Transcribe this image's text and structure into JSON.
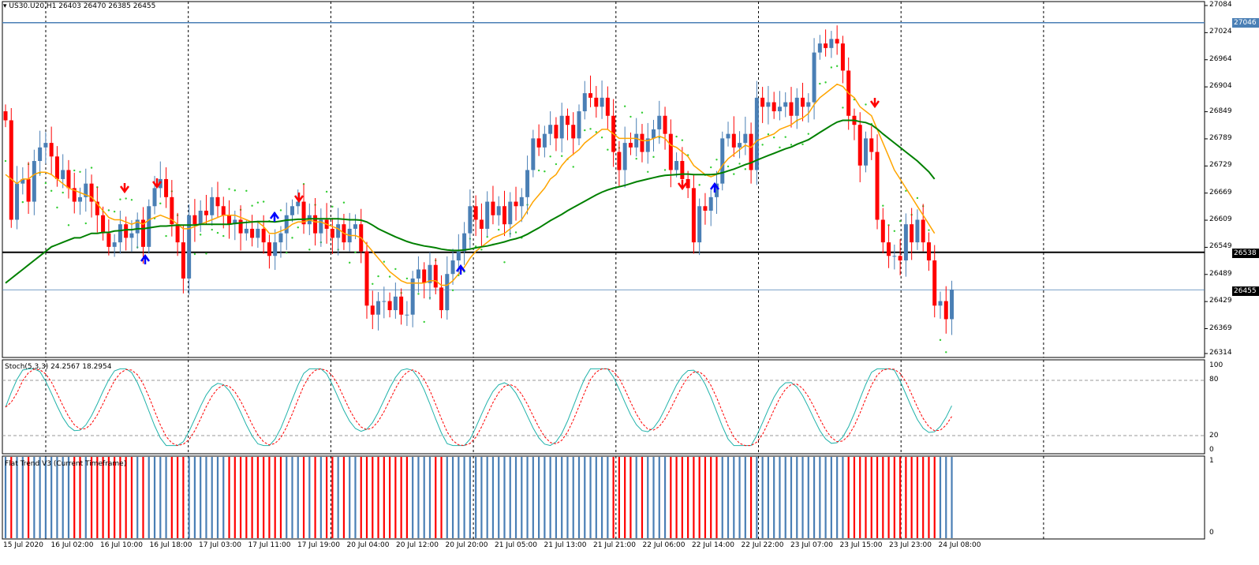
{
  "header": {
    "symbol_line": "US30.U20,H1  26403 26470 26385 26455"
  },
  "price_axis": {
    "ticks": [
      "27084",
      "27024",
      "26964",
      "26904",
      "26849",
      "26789",
      "26729",
      "26669",
      "26609",
      "26549",
      "26489",
      "26429",
      "26369",
      "26314"
    ],
    "tags": {
      "resistance": "27046",
      "support": "26538",
      "current": "26455"
    }
  },
  "stoch": {
    "title": "Stoch(5,3,3) 24.2567 18.2954",
    "levels": [
      "100",
      "80",
      "20",
      "0"
    ]
  },
  "flat_trend": {
    "title": "Flat Trend V3 (Current Timeframe)",
    "levels": [
      "1",
      "0"
    ]
  },
  "time_axis": {
    "labels": [
      "15 Jul 2020",
      "16 Jul 02:00",
      "16 Jul 10:00",
      "16 Jul 18:00",
      "17 Jul 03:00",
      "17 Jul 11:00",
      "17 Jul 19:00",
      "20 Jul 04:00",
      "20 Jul 12:00",
      "20 Jul 20:00",
      "21 Jul 05:00",
      "21 Jul 13:00",
      "21 Jul 21:00",
      "22 Jul 06:00",
      "22 Jul 14:00",
      "22 Jul 22:00",
      "23 Jul 07:00",
      "23 Jul 15:00",
      "23 Jul 23:00",
      "24 Jul 08:00"
    ]
  },
  "colors": {
    "bull": "#4a7fb5",
    "bear": "#ff0000",
    "ma_fast": "#ffa500",
    "ma_slow": "#008000",
    "sar": "#32cd32",
    "stoch_main": "#20b2aa",
    "stoch_signal": "#ff0000",
    "arrow_up": "#0000ff",
    "arrow_down": "#ff0000",
    "resistance": "#4a7fb5",
    "support": "#000000"
  },
  "chart_data": {
    "type": "candlestick",
    "closes": [
      26830,
      26610,
      26690,
      26700,
      26650,
      26740,
      26770,
      26780,
      26750,
      26700,
      26720,
      26680,
      26650,
      26660,
      26690,
      26650,
      26620,
      26580,
      26550,
      26560,
      26600,
      26570,
      26580,
      26610,
      26550,
      26640,
      26680,
      26700,
      26660,
      26600,
      26560,
      26480,
      26620,
      26600,
      26630,
      26620,
      26660,
      26640,
      26620,
      26600,
      26610,
      26580,
      26590,
      26570,
      26590,
      26560,
      26530,
      26560,
      26580,
      26620,
      26640,
      26650,
      26600,
      26620,
      26580,
      26610,
      26590,
      26570,
      26600,
      26560,
      26590,
      26600,
      26540,
      26420,
      26400,
      26430,
      26430,
      26410,
      26440,
      26400,
      26400,
      26480,
      26500,
      26470,
      26510,
      26460,
      26410,
      26490,
      26520,
      26540,
      26580,
      26640,
      26610,
      26590,
      26650,
      26620,
      26640,
      26600,
      26650,
      26640,
      26660,
      26720,
      26790,
      26770,
      26800,
      26820,
      26790,
      26840,
      26820,
      26790,
      26850,
      26890,
      26880,
      26860,
      26880,
      26840,
      26760,
      26720,
      26780,
      26770,
      26800,
      26760,
      26790,
      26810,
      26840,
      26800,
      26720,
      26740,
      26700,
      26680,
      26560,
      26640,
      26630,
      26660,
      26690,
      26790,
      26800,
      26770,
      26780,
      26800,
      26720,
      26880,
      26860,
      26870,
      26850,
      26860,
      26870,
      26840,
      26880,
      26860,
      26870,
      26980,
      27000,
      26990,
      27010,
      27000,
      26940,
      26840,
      26820,
      26730,
      26790,
      26760,
      26610,
      26560,
      26530,
      26530,
      26520,
      26600,
      26560,
      26610,
      26560,
      26520,
      26420,
      26430,
      26390,
      26455
    ],
    "series": [
      {
        "values": [
          26710,
          26700,
          26690,
          26700,
          26700,
          26710,
          26715,
          26715,
          26710,
          26700,
          26690,
          26680,
          26675,
          26670,
          26665,
          26660,
          26645,
          26630,
          26615,
          26610,
          26610,
          26605,
          26600,
          26605,
          26600,
          26610,
          26615,
          26620,
          26615,
          26610,
          26600,
          26590,
          26590,
          26595,
          26600,
          26605,
          26610,
          26615,
          26620,
          26620,
          26620,
          26615,
          26610,
          26605,
          26605,
          26595,
          26580,
          26580,
          26585,
          26590,
          26600,
          26605,
          26605,
          26610,
          26605,
          26605,
          26600,
          26595,
          26590,
          26580,
          26575,
          26575,
          26570,
          26555,
          26540,
          26525,
          26510,
          26495,
          26485,
          26475,
          26470,
          26470,
          26470,
          26470,
          26475,
          26475,
          26465,
          26465,
          26475,
          26490,
          26505,
          26525,
          26540,
          26550,
          26560,
          26570,
          26575,
          26580,
          26590,
          26600,
          26610,
          26630,
          26650,
          26665,
          26680,
          26700,
          26710,
          26730,
          26745,
          26755,
          26765,
          26780,
          26790,
          26800,
          26810,
          26810,
          26800,
          26790,
          26790,
          26790,
          26790,
          26785,
          26785,
          26790,
          26795,
          26790,
          26775,
          26770,
          26760,
          26750,
          26730,
          26720,
          26710,
          26705,
          26710,
          26730,
          26745,
          26755,
          26765,
          26775,
          26770,
          26785,
          26790,
          26795,
          26800,
          26810,
          26815,
          26820,
          26830,
          26835,
          26845,
          26865,
          26880,
          26890,
          26900,
          26910,
          26905,
          26890,
          26880,
          26860,
          26850,
          26840,
          26810,
          26780,
          26750,
          26720,
          26700,
          26680,
          26660,
          26640,
          26620,
          26600,
          26580
        ],
        "name": ""
      },
      {
        "values": [
          26470,
          26480,
          26490,
          26500,
          26510,
          26520,
          26530,
          26540,
          26550,
          26555,
          26560,
          26565,
          26570,
          26570,
          26575,
          26580,
          26580,
          26582,
          26582,
          26585,
          26586,
          26588,
          26588,
          26590,
          26590,
          26592,
          26594,
          26596,
          26596,
          26597,
          26598,
          26598,
          26598,
          26598,
          26600,
          26600,
          26600,
          26600,
          26600,
          26600,
          26602,
          26603,
          26604,
          26605,
          26606,
          26606,
          26606,
          26605,
          26607,
          26609,
          26610,
          26611,
          26611,
          26612,
          26612,
          26612,
          26612,
          26612,
          26612,
          26611,
          26610,
          26610,
          26609,
          26605,
          26598,
          26590,
          26584,
          26578,
          26572,
          26567,
          26562,
          26558,
          26555,
          26552,
          26550,
          26548,
          26545,
          26543,
          26542,
          26542,
          26543,
          26545,
          26548,
          26550,
          26552,
          26555,
          26558,
          26561,
          26565,
          26568,
          26572,
          26578,
          26585,
          26592,
          26600,
          26608,
          26615,
          26622,
          26630,
          26637,
          26644,
          26651,
          26658,
          26665,
          26671,
          26676,
          26680,
          26683,
          26686,
          26690,
          26694,
          26697,
          26700,
          26703,
          26706,
          26708,
          26709,
          26710,
          26711,
          26711,
          26710,
          26710,
          26710,
          26710,
          26711,
          26714,
          26718,
          26722,
          26727,
          26732,
          26736,
          26742,
          26747,
          26752,
          26757,
          26762,
          26767,
          26771,
          26777,
          26782,
          26787,
          26795,
          26803,
          26811,
          26819,
          26826,
          26830,
          26830,
          26830,
          26827,
          26825,
          26820,
          26811,
          26800,
          26790,
          26780,
          26770,
          26760,
          26750,
          26740,
          26728,
          26716,
          26700
        ],
        "name": ""
      }
    ],
    "ylim": [
      26314,
      27084
    ]
  }
}
